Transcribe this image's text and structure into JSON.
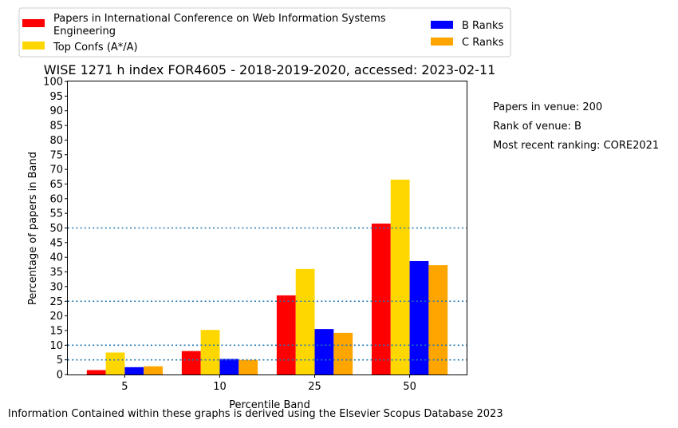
{
  "chart_data": {
    "type": "bar",
    "title": "WISE 1271 h index FOR4605 - 2018-2019-2020, accessed: 2023-02-11",
    "xlabel": "Percentile Band",
    "ylabel": "Percentage of papers in Band",
    "categories": [
      "5",
      "10",
      "25",
      "50"
    ],
    "ylim": [
      0,
      100
    ],
    "yticks": [
      0,
      5,
      10,
      15,
      20,
      25,
      30,
      35,
      40,
      45,
      50,
      55,
      60,
      65,
      70,
      75,
      80,
      85,
      90,
      95,
      100
    ],
    "reference_lines": [
      5,
      10,
      25,
      50
    ],
    "legend_position": "above plot",
    "series": [
      {
        "name": "Papers in International Conference on Web Information Systems Engineering",
        "color": "#ff0000",
        "values": [
          1.5,
          8.0,
          27.0,
          51.5
        ]
      },
      {
        "name": "Top Confs (A*/A)",
        "color": "#ffd700",
        "values": [
          7.5,
          15.2,
          36.0,
          66.5
        ]
      },
      {
        "name": "B Ranks",
        "color": "#0000ff",
        "values": [
          2.5,
          5.3,
          15.5,
          38.7
        ]
      },
      {
        "name": "C Ranks",
        "color": "#ffa500",
        "values": [
          2.8,
          5.0,
          14.2,
          37.3
        ]
      }
    ],
    "legend_labels": [
      "Papers in International Conference on Web Information Systems",
      "Engineering",
      "Top Confs (A*/A)",
      "B Ranks",
      "C Ranks"
    ]
  },
  "side_notes": [
    "Papers in venue: 200",
    "Rank of venue: B",
    "Most recent ranking: CORE2021"
  ],
  "footer": "Information Contained within these graphs is derived using the Elsevier Scopus Database 2023",
  "colors": {
    "reference_line": "#1f77b4"
  }
}
